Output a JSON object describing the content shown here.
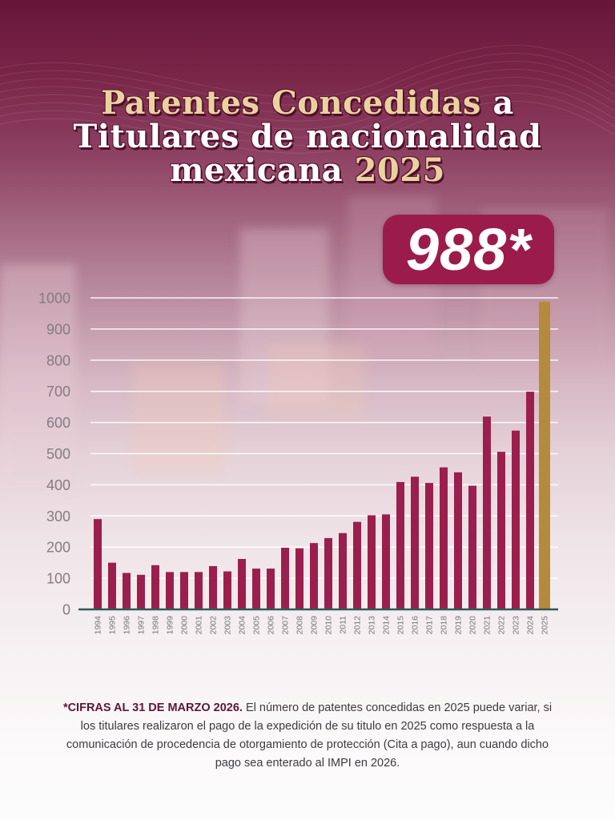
{
  "title": {
    "line1_gold": "Patentes Concedidas",
    "line1_white": "a",
    "line2": "Titulares de nacionalidad",
    "line3_white": "mexicana",
    "line3_gold": "2025"
  },
  "badge": {
    "value": "988*"
  },
  "chart_data": {
    "type": "bar",
    "categories": [
      "1994",
      "1995",
      "1996",
      "1997",
      "1998",
      "1999",
      "2000",
      "2001",
      "2002",
      "2003",
      "2004",
      "2005",
      "2006",
      "2007",
      "2008",
      "2009",
      "2010",
      "2011",
      "2012",
      "2013",
      "2014",
      "2015",
      "2016",
      "2017",
      "2018",
      "2019",
      "2020",
      "2021",
      "2022",
      "2023",
      "2024",
      "2025"
    ],
    "values": [
      290,
      150,
      117,
      111,
      142,
      120,
      120,
      120,
      139,
      122,
      162,
      131,
      131,
      198,
      196,
      213,
      229,
      245,
      281,
      302,
      305,
      409,
      426,
      406,
      456,
      440,
      397,
      619,
      506,
      574,
      699,
      988
    ],
    "ylim": [
      0,
      1000
    ],
    "yticks": [
      0,
      100,
      200,
      300,
      400,
      500,
      600,
      700,
      800,
      900,
      1000
    ],
    "grid": true,
    "legend": false,
    "bar_colors": [
      "#9b1f4d",
      "#9b1f4d",
      "#9b1f4d",
      "#9b1f4d",
      "#9b1f4d",
      "#9b1f4d",
      "#9b1f4d",
      "#9b1f4d",
      "#9b1f4d",
      "#9b1f4d",
      "#9b1f4d",
      "#9b1f4d",
      "#9b1f4d",
      "#9b1f4d",
      "#9b1f4d",
      "#9b1f4d",
      "#9b1f4d",
      "#9b1f4d",
      "#9b1f4d",
      "#9b1f4d",
      "#9b1f4d",
      "#9b1f4d",
      "#9b1f4d",
      "#9b1f4d",
      "#9b1f4d",
      "#9b1f4d",
      "#9b1f4d",
      "#9b1f4d",
      "#9b1f4d",
      "#9b1f4d",
      "#9b1f4d",
      "#b48a3c"
    ]
  },
  "footnote": {
    "bold": "*CIFRAS AL  31 DE MARZO 2026.",
    "text": "El número de patentes concedidas en 2025 puede variar, si los titulares realizaron el pago de la expedición de su titulo en 2025 como respuesta a la comunicación de procedencia de otorgamiento de protección (Cita a pago), aun cuando dicho pago sea enterado al IMPI  en 2026."
  },
  "colors": {
    "background_top": "#67163a",
    "title_gold": "#ead29f",
    "badge_background": "#9b1c4a",
    "gridline": "#ffffff",
    "baseline": "#2e5b53",
    "tick_label": "#857b81",
    "footnote_bold": "#5b1836"
  }
}
